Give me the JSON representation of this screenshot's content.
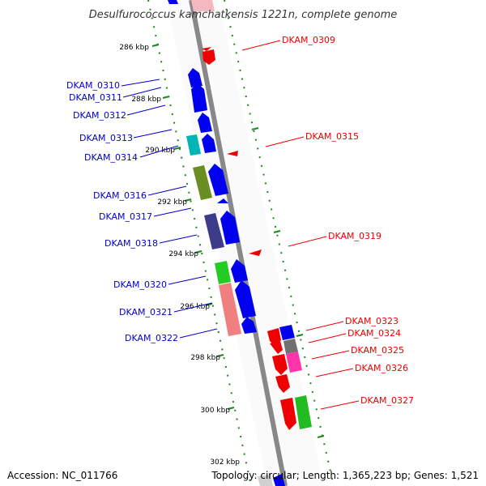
{
  "title": "Desulfurococcus kamchatkensis 1221n, complete genome",
  "footer": {
    "accession": "Accession: NC_011766",
    "topology": "Topology: circular; Length: 1,365,223 bp; Genes: 1,521"
  },
  "colors": {
    "forward_label": "#0000cc",
    "reverse_label": "#ff0000",
    "backbone": "#888888",
    "tick": "#008000"
  },
  "kbp_ticks": [
    "286 kbp",
    "288 kbp",
    "290 kbp",
    "292 kbp",
    "294 kbp",
    "296 kbp",
    "298 kbp",
    "300 kbp",
    "302 kbp"
  ],
  "left_labels": [
    "DKAM_0310",
    "DKAM_0311",
    "DKAM_0312",
    "DKAM_0313",
    "DKAM_0314",
    "DKAM_0316",
    "DKAM_0317",
    "DKAM_0318",
    "DKAM_0320",
    "DKAM_0321",
    "DKAM_0322"
  ],
  "right_labels": [
    "DKAM_0309",
    "DKAM_0315",
    "DKAM_0319",
    "DKAM_0323",
    "DKAM_0324",
    "DKAM_0325",
    "DKAM_0326",
    "DKAM_0327"
  ]
}
